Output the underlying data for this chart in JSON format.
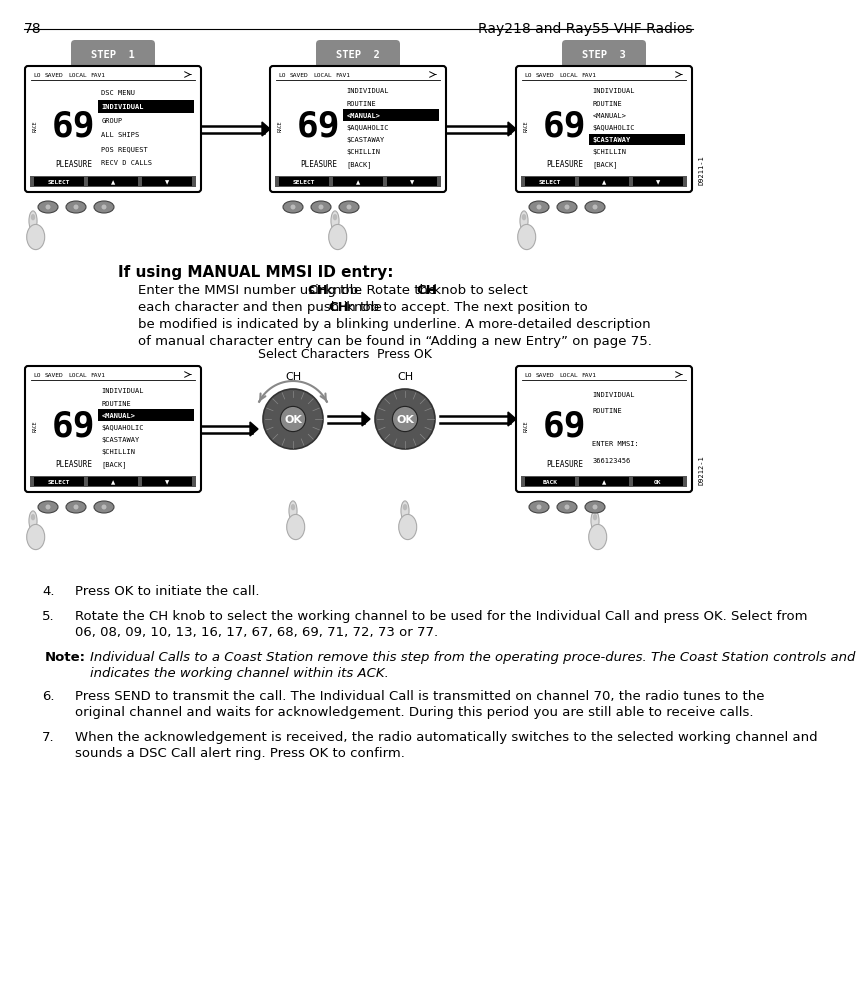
{
  "page_number": "78",
  "title_right": "Ray218 and Ray55 VHF Radios",
  "bg_color": "#ffffff",
  "step_labels": [
    "STEP  1",
    "STEP  2",
    "STEP  3"
  ],
  "manual_heading": "If using MANUAL MMSI ID entry:",
  "manual_body_bold_parts": [
    "CH",
    "CH",
    "CH"
  ],
  "manual_body_lines": [
    [
      "Enter the MMSI number using the ",
      "CH",
      " knob. Rotate the ",
      "CH",
      " knob to select"
    ],
    [
      "each character and then push in the ",
      "CH",
      " knob to accept. The next position to"
    ],
    [
      "be modified is indicated by a blinking underline. A more-detailed description"
    ],
    [
      "of manual character entry can be found in “Adding a new Entry” on page 75."
    ]
  ],
  "select_chars_label": "Select Characters",
  "press_ok_label": "Press OK",
  "screen1_title": "DSC MENU",
  "screen1_lines": [
    "INDIVIDUAL",
    "GROUP",
    "ALL SHIPS",
    "POS REQUEST",
    "RECV D CALLS"
  ],
  "screen1_highlight": 0,
  "screen2_lines": [
    "INDIVIDUAL",
    "ROUTINE",
    "<MANUAL>",
    "$AQUAHOLIC",
    "$CASTAWAY",
    "$CHILLIN",
    "[BACK]"
  ],
  "screen2_highlight": 2,
  "screen3_lines": [
    "INDIVIDUAL",
    "ROUTINE",
    "<MANUAL>",
    "$AQUAHOLIC",
    "$CASTAWAY",
    "$CHILLIN",
    "[BACK]"
  ],
  "screen3_highlight": 4,
  "screen4_lines": [
    "INDIVIDUAL",
    "ROUTINE",
    "<MANUAL>",
    "$AQUAHOLIC",
    "$CASTAWAY",
    "$CHILLIN",
    "[BACK]"
  ],
  "screen4_highlight": 2,
  "screen5_lines": [
    "INDIVIDUAL",
    "ROUTINE",
    "",
    "ENTER MMSI:",
    "366123456"
  ],
  "screen5_highlight": -1,
  "channel": "69",
  "location": "PLEASURE",
  "status_bar": "LO   SAVED  LOCAL  FAV1",
  "diag1": "D9211-1",
  "diag2": "D9212-1",
  "items": [
    {
      "num": "4.",
      "text": "Press OK to initiate the call."
    },
    {
      "num": "5.",
      "text": "Rotate the CH knob to select the working channel to be used for the Individual Call and press OK. Select from 06, 08, 09, 10, 13, 16, 17, 67, 68, 69, 71, 72, 73 or 77."
    },
    {
      "num": "Note:",
      "italic": true,
      "text": "Individual Calls to a Coast Station remove this step from the operating proce-dures. The Coast Station controls and indicates the working channel within its ACK."
    },
    {
      "num": "6.",
      "text": "Press SEND to transmit the call. The Individual Call is transmitted on channel 70, the radio tunes to the original channel and waits for acknowledgement. During this period you are still able to receive calls."
    },
    {
      "num": "7.",
      "text": "When the acknowledgement is received, the radio automatically switches to the selected working channel and sounds a DSC Call alert ring. Press OK to confirm."
    }
  ]
}
